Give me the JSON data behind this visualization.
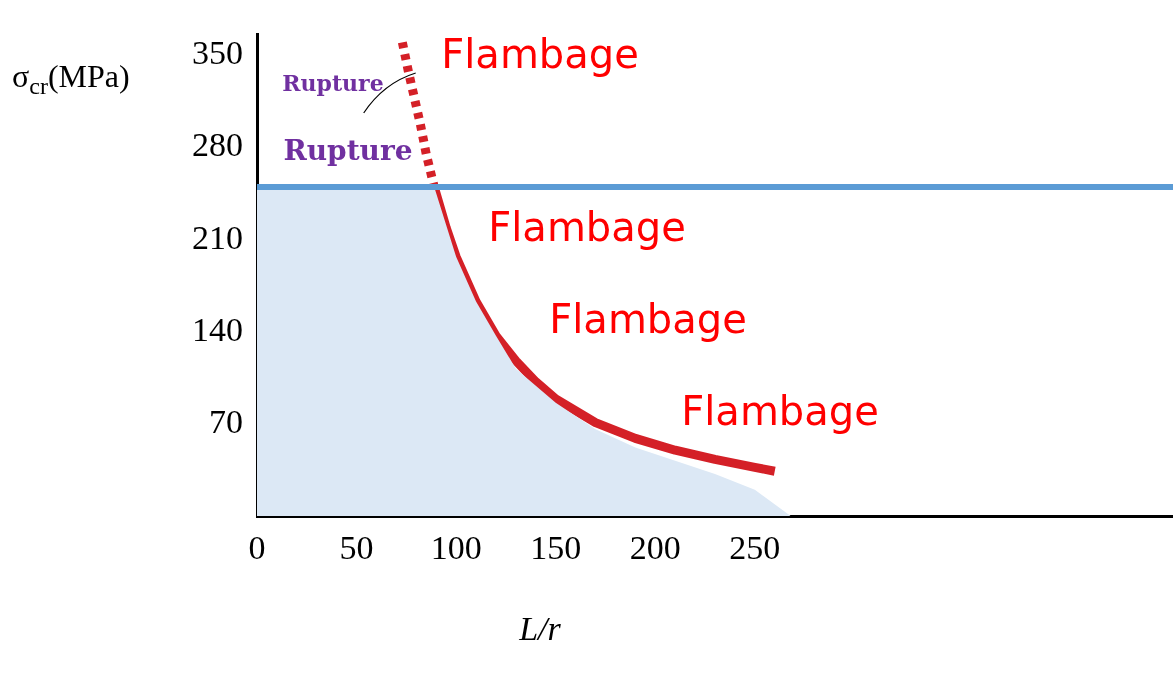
{
  "chart_data": {
    "type": "line",
    "xlabel": "L/r",
    "ylabel": "σ$_{cr}$(MPa)",
    "xlim": [
      0,
      460
    ],
    "xticks": [
      0,
      50,
      100,
      150,
      200,
      250
    ],
    "ylim": [
      0,
      366
    ],
    "yticks": [
      70,
      140,
      210,
      280,
      350
    ],
    "grid": false,
    "legend": false,
    "marker": "none",
    "series": [
      {
        "type": "area",
        "color": "#dce8f5",
        "x": [
          0,
          89,
          100,
          110,
          120,
          130,
          150,
          170,
          190,
          210,
          230,
          250,
          268
        ],
        "values": [
          250,
          250,
          197,
          163,
          137,
          112,
          86,
          66,
          52,
          42,
          32,
          20,
          0
        ]
      },
      {
        "type": "line",
        "line_style": "dotted",
        "color": "#d42027",
        "x": [
          73,
          76,
          79,
          82,
          85,
          89
        ],
        "values": [
          360,
          338,
          318,
          298,
          275,
          250
        ]
      },
      {
        "type": "line",
        "line_style": "solid",
        "color": "#d42027",
        "x": [
          89,
          95,
          100,
          110,
          120,
          130,
          140,
          150,
          170,
          190,
          210,
          230,
          250,
          260
        ],
        "values": [
          250,
          219,
          197,
          163,
          137,
          118,
          102,
          89,
          71,
          59,
          50,
          43,
          37,
          34
        ]
      }
    ],
    "ref_lines": [
      {
        "axis": "y",
        "value": 250,
        "color": "#5b9bd5"
      }
    ],
    "annotations": [
      "Rupture",
      "Flambage",
      "Rupture",
      "Flambage",
      "Flambage",
      "Flambage"
    ]
  }
}
